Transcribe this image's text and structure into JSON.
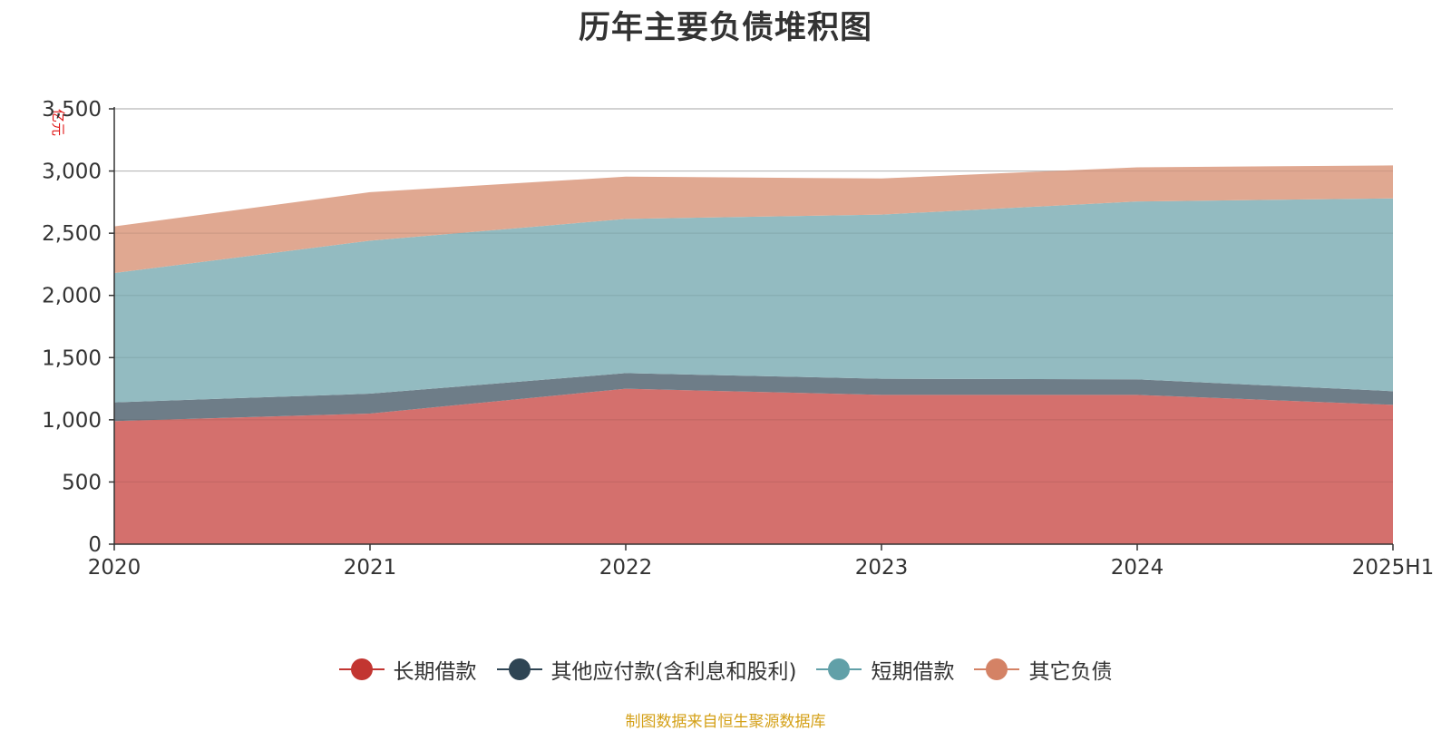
{
  "chart_data": {
    "type": "area",
    "title": "历年主要负债堆积图",
    "unit": "亿元",
    "categories": [
      "2020",
      "2021",
      "2022",
      "2023",
      "2024",
      "2025H1"
    ],
    "ylim": [
      0,
      3500
    ],
    "yticks": [
      "0",
      "500",
      "1,000",
      "1,500",
      "2,000",
      "2,500",
      "3,000",
      "3,500"
    ],
    "grid": true,
    "stacked": true,
    "legend_position": "bottom-center",
    "series": [
      {
        "name": "长期借款",
        "color": "#c23531",
        "area_color": "#d4706d",
        "values": [
          990,
          1050,
          1250,
          1200,
          1200,
          1120
        ]
      },
      {
        "name": "其他应付款(含利息和股利)",
        "color": "#2f4554",
        "area_color": "#6e7d88",
        "values": [
          150,
          160,
          125,
          130,
          125,
          110
        ]
      },
      {
        "name": "短期借款",
        "color": "#61a0a8",
        "area_color": "#93bbc1",
        "values": [
          1040,
          1230,
          1240,
          1320,
          1430,
          1550
        ]
      },
      {
        "name": "其它负债",
        "color": "#d48265",
        "area_color": "#e0a891",
        "values": [
          375,
          390,
          340,
          290,
          275,
          265
        ]
      }
    ]
  },
  "footer": {
    "source": "制图数据来自恒生聚源数据库"
  }
}
